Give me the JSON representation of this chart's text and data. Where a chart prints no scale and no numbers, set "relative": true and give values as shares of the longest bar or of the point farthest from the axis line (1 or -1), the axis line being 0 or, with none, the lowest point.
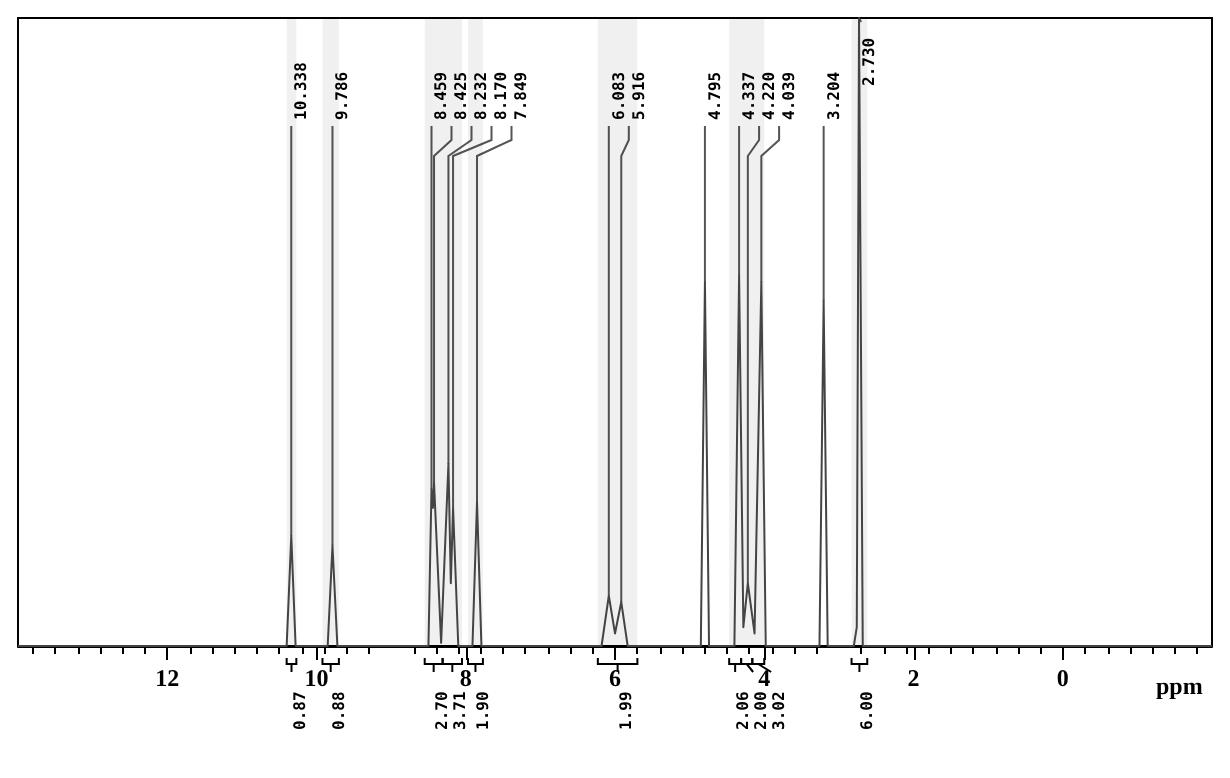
{
  "chart_data": {
    "type": "line",
    "relative": true,
    "xlabel": "ppm",
    "xlim": [
      14,
      -2
    ],
    "xticks": [
      12,
      10,
      8,
      6,
      4,
      2,
      0
    ],
    "grid": false,
    "marker": "none",
    "tick_labels": "x",
    "x": [
      14,
      10.4,
      10.338,
      10.28,
      9.85,
      9.786,
      9.72,
      8.5,
      8.459,
      8.44,
      8.425,
      8.33,
      8.232,
      8.2,
      8.17,
      8.1,
      7.91,
      7.849,
      7.79,
      6.18,
      6.083,
      6.0,
      5.916,
      5.83,
      4.85,
      4.795,
      4.74,
      4.4,
      4.337,
      4.28,
      4.22,
      4.13,
      4.039,
      3.98,
      3.26,
      3.204,
      3.15,
      2.8,
      2.76,
      2.73,
      2.68,
      -2
    ],
    "series": [
      {
        "color": "#444444",
        "values": [
          0,
          0,
          0.175,
          0,
          0,
          0.16,
          0,
          0,
          0.25,
          0.22,
          0.26,
          0.005,
          0.29,
          0.1,
          0.22,
          0,
          0,
          0.23,
          0,
          0,
          0.08,
          0.02,
          0.07,
          0,
          0,
          0.58,
          0,
          0,
          0.59,
          0.03,
          0.1,
          0.02,
          0.58,
          0,
          0,
          0.55,
          0,
          0,
          0.03,
          1,
          0,
          0
        ]
      }
    ],
    "annotations": [
      {
        "text": "10.338",
        "x": 10.338,
        "y": 0.175
      },
      {
        "text": "9.786",
        "x": 9.786,
        "y": 0.16
      },
      {
        "text": "8.459",
        "x": 8.459,
        "y": 0.25
      },
      {
        "text": "8.425",
        "x": 8.425,
        "y": 0.26
      },
      {
        "text": "8.232",
        "x": 8.232,
        "y": 0.29
      },
      {
        "text": "8.170",
        "x": 8.17,
        "y": 0.22
      },
      {
        "text": "7.849",
        "x": 7.849,
        "y": 0.23
      },
      {
        "text": "6.083",
        "x": 6.083,
        "y": 0.08
      },
      {
        "text": "5.916",
        "x": 5.916,
        "y": 0.07
      },
      {
        "text": "4.795",
        "x": 4.795,
        "y": 0.58
      },
      {
        "text": "4.337",
        "x": 4.337,
        "y": 0.59
      },
      {
        "text": "4.220",
        "x": 4.22,
        "y": 0.1
      },
      {
        "text": "4.039",
        "x": 4.039,
        "y": 0.58
      },
      {
        "text": "3.204",
        "x": 3.204,
        "y": 0.55
      },
      {
        "text": "2.730",
        "x": 2.73,
        "y": 1
      }
    ],
    "bands": [
      {
        "axis": "x",
        "from": 10.4,
        "to": 10.27,
        "label": "0.87"
      },
      {
        "axis": "x",
        "from": 9.92,
        "to": 9.7,
        "label": "0.88"
      },
      {
        "axis": "x",
        "from": 8.55,
        "to": 8.31,
        "label": "2.70"
      },
      {
        "axis": "x",
        "from": 8.31,
        "to": 8.05,
        "label": "3.71"
      },
      {
        "axis": "x",
        "from": 7.97,
        "to": 7.77,
        "label": "1.90"
      },
      {
        "axis": "x",
        "from": 6.23,
        "to": 5.7,
        "label": "1.99"
      },
      {
        "axis": "x",
        "from": 4.47,
        "to": 4.31,
        "label": "2.06"
      },
      {
        "axis": "x",
        "from": 4.31,
        "to": 4.16,
        "label": "2.00"
      },
      {
        "axis": "x",
        "from": 4.16,
        "to": 4.0,
        "label": "3.02"
      },
      {
        "axis": "x",
        "from": 2.83,
        "to": 2.62,
        "label": "6.00"
      }
    ]
  }
}
